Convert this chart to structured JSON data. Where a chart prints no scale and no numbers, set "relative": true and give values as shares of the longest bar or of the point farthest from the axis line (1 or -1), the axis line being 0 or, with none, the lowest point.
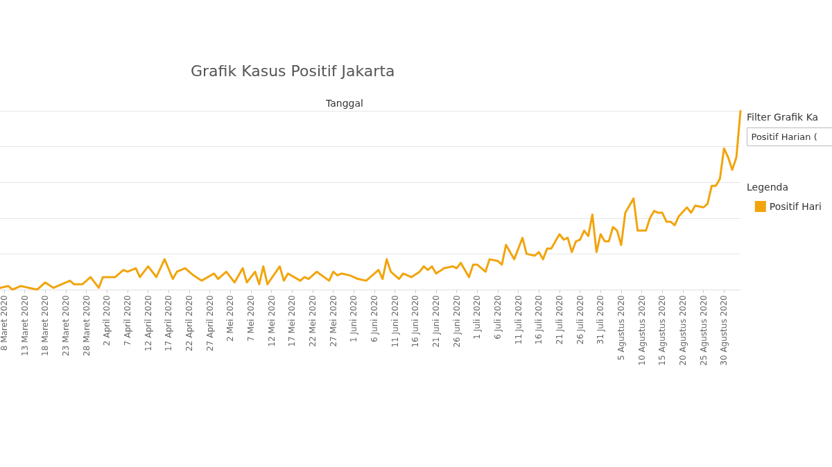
{
  "chart_data": {
    "type": "line",
    "title": "Grafik Kasus Positif Jakarta",
    "xlabel": "Tanggal",
    "legend_title": "Legenda",
    "legend": "right",
    "grid": "y",
    "relative": true,
    "marker": "none",
    "line_style": "solid",
    "annotations": [
      "Filter Grafik Ka",
      "Positif Harian ("
    ],
    "xlim": [
      "2020-03-07",
      "2020-09-03"
    ],
    "xticks": [
      {
        "value": "2020-03-08",
        "label": "8 Maret 2020"
      },
      {
        "value": "2020-03-13",
        "label": "13 Maret 2020"
      },
      {
        "value": "2020-03-18",
        "label": "18 Maret 2020"
      },
      {
        "value": "2020-03-23",
        "label": "23 Maret 2020"
      },
      {
        "value": "2020-03-28",
        "label": "28 Maret 2020"
      },
      {
        "value": "2020-04-02",
        "label": "2 April 2020"
      },
      {
        "value": "2020-04-07",
        "label": "7 April 2020"
      },
      {
        "value": "2020-04-12",
        "label": "12 April 2020"
      },
      {
        "value": "2020-04-17",
        "label": "17 April 2020"
      },
      {
        "value": "2020-04-22",
        "label": "22 April 2020"
      },
      {
        "value": "2020-04-27",
        "label": "27 April 2020"
      },
      {
        "value": "2020-05-02",
        "label": "2 Mei 2020"
      },
      {
        "value": "2020-05-07",
        "label": "7 Mei 2020"
      },
      {
        "value": "2020-05-12",
        "label": "12 Mei 2020"
      },
      {
        "value": "2020-05-17",
        "label": "17 Mei 2020"
      },
      {
        "value": "2020-05-22",
        "label": "22 Mei 2020"
      },
      {
        "value": "2020-05-27",
        "label": "27 Mei 2020"
      },
      {
        "value": "2020-06-01",
        "label": "1 Juni 2020"
      },
      {
        "value": "2020-06-06",
        "label": "6 Juni 2020"
      },
      {
        "value": "2020-06-11",
        "label": "11 Juni 2020"
      },
      {
        "value": "2020-06-16",
        "label": "16 Juni 2020"
      },
      {
        "value": "2020-06-21",
        "label": "21 Juni 2020"
      },
      {
        "value": "2020-06-26",
        "label": "26 Juni 2020"
      },
      {
        "value": "2020-07-01",
        "label": "1 Juli 2020"
      },
      {
        "value": "2020-07-06",
        "label": "6 Juli 2020"
      },
      {
        "value": "2020-07-11",
        "label": "11 Juli 2020"
      },
      {
        "value": "2020-07-16",
        "label": "16 Juli 2020"
      },
      {
        "value": "2020-07-21",
        "label": "21 Juli 2020"
      },
      {
        "value": "2020-07-26",
        "label": "26 Juli 2020"
      },
      {
        "value": "2020-07-31",
        "label": "31 Juli 2020"
      },
      {
        "value": "2020-08-05",
        "label": "5 Agustus 2020"
      },
      {
        "value": "2020-08-10",
        "label": "10 Agustus 2020"
      },
      {
        "value": "2020-08-15",
        "label": "15 Agustus 2020"
      },
      {
        "value": "2020-08-20",
        "label": "20 Agustus 2020"
      },
      {
        "value": "2020-08-25",
        "label": "25 Agustus 2020"
      },
      {
        "value": "2020-08-30",
        "label": "30 Agustus 2020"
      }
    ],
    "series": [
      {
        "name": "Positif Hari",
        "color": "#f2a40c",
        "x": [
          "2020-03-07",
          "2020-03-09",
          "2020-03-10",
          "2020-03-12",
          "2020-03-16",
          "2020-03-18",
          "2020-03-20",
          "2020-03-24",
          "2020-03-25",
          "2020-03-27",
          "2020-03-29",
          "2020-03-31",
          "2020-04-01",
          "2020-04-04",
          "2020-04-06",
          "2020-04-07",
          "2020-04-09",
          "2020-04-10",
          "2020-04-12",
          "2020-04-14",
          "2020-04-16",
          "2020-04-18",
          "2020-04-19",
          "2020-04-21",
          "2020-04-23",
          "2020-04-25",
          "2020-04-28",
          "2020-04-29",
          "2020-05-01",
          "2020-05-03",
          "2020-05-05",
          "2020-05-06",
          "2020-05-08",
          "2020-05-09",
          "2020-05-10",
          "2020-05-11",
          "2020-05-14",
          "2020-05-15",
          "2020-05-16",
          "2020-05-19",
          "2020-05-20",
          "2020-05-21",
          "2020-05-23",
          "2020-05-26",
          "2020-05-27",
          "2020-05-28",
          "2020-05-29",
          "2020-05-31",
          "2020-06-02",
          "2020-06-04",
          "2020-06-07",
          "2020-06-08",
          "2020-06-09",
          "2020-06-10",
          "2020-06-12",
          "2020-06-13",
          "2020-06-15",
          "2020-06-17",
          "2020-06-18",
          "2020-06-19",
          "2020-06-20",
          "2020-06-21",
          "2020-06-23",
          "2020-06-25",
          "2020-06-26",
          "2020-06-27",
          "2020-06-29",
          "2020-06-30",
          "2020-07-01",
          "2020-07-03",
          "2020-07-04",
          "2020-07-06",
          "2020-07-07",
          "2020-07-08",
          "2020-07-10",
          "2020-07-12",
          "2020-07-13",
          "2020-07-15",
          "2020-07-16",
          "2020-07-17",
          "2020-07-18",
          "2020-07-19",
          "2020-07-21",
          "2020-07-22",
          "2020-07-23",
          "2020-07-24",
          "2020-07-25",
          "2020-07-26",
          "2020-07-27",
          "2020-07-28",
          "2020-07-29",
          "2020-07-30",
          "2020-07-31",
          "2020-08-01",
          "2020-08-02",
          "2020-08-03",
          "2020-08-04",
          "2020-08-05",
          "2020-08-06",
          "2020-08-08",
          "2020-08-09",
          "2020-08-10",
          "2020-08-11",
          "2020-08-12",
          "2020-08-13",
          "2020-08-14",
          "2020-08-15",
          "2020-08-16",
          "2020-08-17",
          "2020-08-18",
          "2020-08-19",
          "2020-08-21",
          "2020-08-22",
          "2020-08-23",
          "2020-08-25",
          "2020-08-26",
          "2020-08-27",
          "2020-08-28",
          "2020-08-29",
          "2020-08-30",
          "2020-08-31",
          "2020-09-01",
          "2020-09-02",
          "2020-09-03"
        ],
        "values": [
          0.01,
          0.02,
          0.0,
          0.02,
          0.0,
          0.04,
          0.01,
          0.05,
          0.03,
          0.03,
          0.07,
          0.01,
          0.07,
          0.07,
          0.11,
          0.1,
          0.12,
          0.07,
          0.13,
          0.07,
          0.17,
          0.06,
          0.1,
          0.12,
          0.08,
          0.05,
          0.09,
          0.06,
          0.1,
          0.04,
          0.12,
          0.04,
          0.1,
          0.03,
          0.13,
          0.03,
          0.13,
          0.05,
          0.09,
          0.05,
          0.07,
          0.06,
          0.1,
          0.05,
          0.1,
          0.08,
          0.09,
          0.08,
          0.06,
          0.05,
          0.11,
          0.06,
          0.17,
          0.1,
          0.06,
          0.09,
          0.07,
          0.1,
          0.13,
          0.11,
          0.13,
          0.09,
          0.12,
          0.13,
          0.12,
          0.15,
          0.07,
          0.14,
          0.14,
          0.1,
          0.17,
          0.16,
          0.14,
          0.25,
          0.17,
          0.29,
          0.2,
          0.19,
          0.21,
          0.17,
          0.23,
          0.23,
          0.31,
          0.28,
          0.29,
          0.21,
          0.27,
          0.28,
          0.33,
          0.3,
          0.42,
          0.21,
          0.31,
          0.27,
          0.27,
          0.35,
          0.33,
          0.25,
          0.43,
          0.51,
          0.33,
          0.33,
          0.33,
          0.4,
          0.44,
          0.43,
          0.43,
          0.38,
          0.38,
          0.36,
          0.41,
          0.46,
          0.43,
          0.47,
          0.46,
          0.48,
          0.58,
          0.58,
          0.62,
          0.79,
          0.74,
          0.67,
          0.74,
          1
        ]
      }
    ]
  }
}
